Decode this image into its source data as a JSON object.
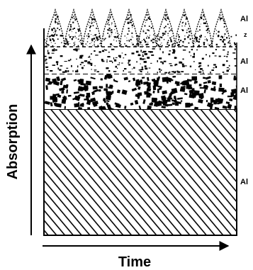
{
  "figure": {
    "y_axis_label": "Absorption",
    "x_axis_label": "Time",
    "layers_bottom_to_top": [
      {
        "pattern": "diagonal-hatch",
        "label": "Al"
      },
      {
        "pattern": "dense-blotches",
        "label": "Al"
      },
      {
        "pattern": "sparse-speckles",
        "label": "Al"
      },
      {
        "pattern": "spiky-crest",
        "label": "Al"
      }
    ],
    "extra_mark": "z",
    "colors": {
      "ink": "#000000",
      "background": "#ffffff"
    }
  }
}
